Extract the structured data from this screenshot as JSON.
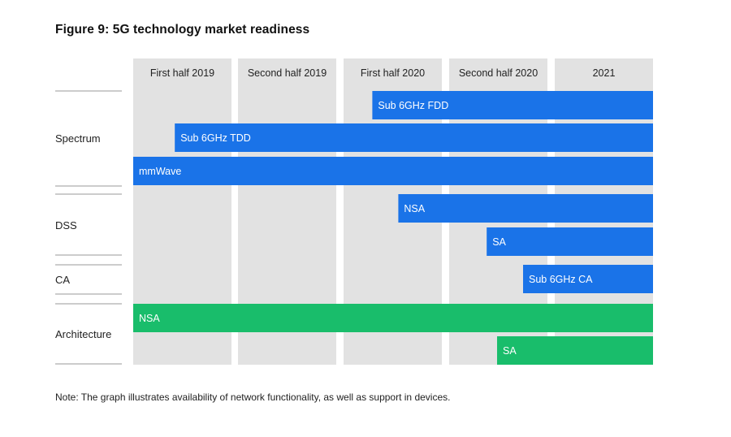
{
  "title": "Figure 9: 5G technology market readiness",
  "note": "Note: The graph illustrates availability of network functionality, as well as support in devices.",
  "colors": {
    "column_bg": "#e2e2e2",
    "blue": "#1a73e8",
    "green": "#19bd6b",
    "divider": "#9a9a9a"
  },
  "chart_data": {
    "type": "gantt",
    "periods": [
      "First half 2019",
      "Second half 2019",
      "First half 2020",
      "Second half 2020",
      "2021"
    ],
    "groups": [
      {
        "label": "Spectrum",
        "items": [
          {
            "label": "Sub 6GHz FDD",
            "start": 2.3,
            "end": 5.0,
            "color": "blue"
          },
          {
            "label": "Sub 6GHz TDD",
            "start": 0.4,
            "end": 5.0,
            "color": "blue"
          },
          {
            "label": "mmWave",
            "start": 0.0,
            "end": 5.0,
            "color": "blue"
          }
        ]
      },
      {
        "label": "DSS",
        "items": [
          {
            "label": "NSA",
            "start": 2.55,
            "end": 5.0,
            "color": "blue"
          },
          {
            "label": "SA",
            "start": 3.4,
            "end": 5.0,
            "color": "blue"
          }
        ]
      },
      {
        "label": "CA",
        "items": [
          {
            "label": "Sub 6GHz CA",
            "start": 3.75,
            "end": 5.0,
            "color": "blue"
          }
        ]
      },
      {
        "label": "Architecture",
        "items": [
          {
            "label": "NSA",
            "start": 0.0,
            "end": 5.0,
            "color": "green"
          },
          {
            "label": "SA",
            "start": 3.5,
            "end": 5.0,
            "color": "green"
          }
        ]
      }
    ]
  }
}
